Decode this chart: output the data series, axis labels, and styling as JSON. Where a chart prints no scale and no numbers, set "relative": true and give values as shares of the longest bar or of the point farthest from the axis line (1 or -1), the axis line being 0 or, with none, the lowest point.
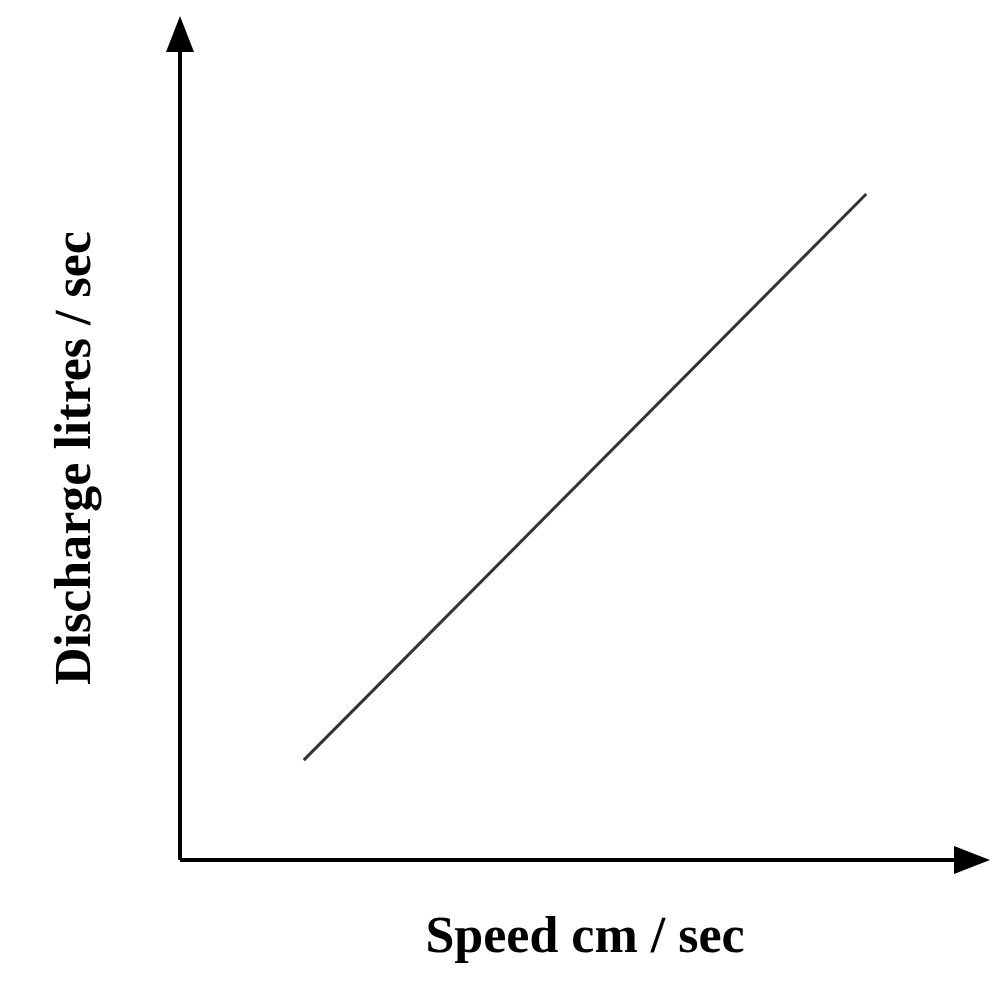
{
  "chart_data": {
    "type": "line",
    "relative": true,
    "xlabel": "Speed cm / sec",
    "ylabel": "Discharge litres / sec",
    "categories": [
      null,
      null
    ],
    "series": [
      {
        "color": "#333333",
        "values": [
          0.15,
          1
        ]
      }
    ],
    "marker": "none",
    "line_style": "solid"
  }
}
